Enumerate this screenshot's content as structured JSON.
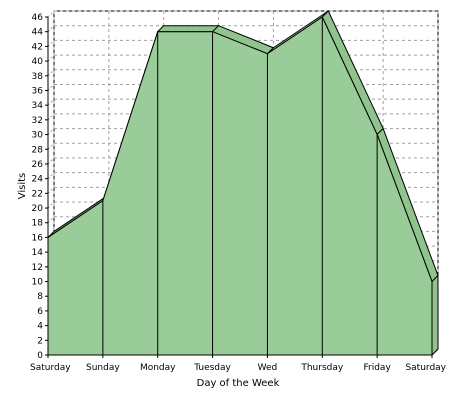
{
  "chart_data": {
    "type": "area",
    "title": "",
    "xlabel": "Day of the Week",
    "ylabel": "Visits",
    "categories": [
      "Saturday",
      "Sunday",
      "Monday",
      "Tuesday",
      "Wed",
      "Thursday",
      "Friday",
      "Saturday"
    ],
    "series": [
      {
        "values": [
          16,
          21,
          44,
          44,
          41,
          46,
          30,
          10
        ]
      }
    ],
    "ylim": [
      0,
      46
    ],
    "yticks": [
      0,
      2,
      4,
      6,
      8,
      10,
      12,
      14,
      16,
      18,
      20,
      22,
      24,
      26,
      28,
      30,
      32,
      34,
      36,
      38,
      40,
      42,
      44,
      46
    ],
    "grid": true,
    "legend": "none",
    "colors": {
      "fill_front": "#99cc99",
      "fill_top": "#8fc48f",
      "stroke": "#000000",
      "grid": "#a0a0a0",
      "background": "#ffffff"
    }
  }
}
